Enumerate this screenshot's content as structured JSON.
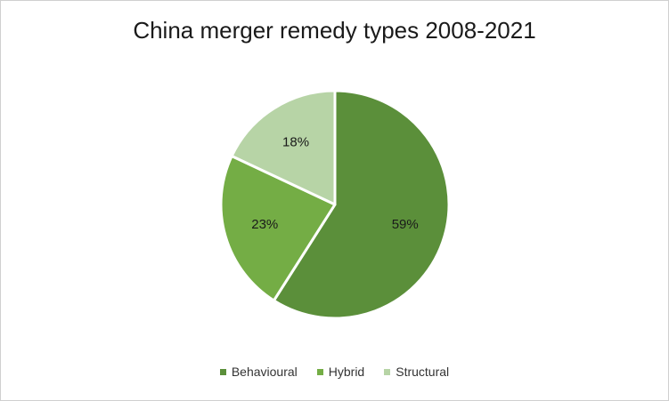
{
  "chart_data": {
    "type": "pie",
    "title": "China merger remedy types 2008-2021",
    "categories": [
      "Behavioural",
      "Hybrid",
      "Structural"
    ],
    "values": [
      59,
      23,
      18
    ],
    "labels": [
      "59%",
      "23%",
      "18%"
    ],
    "colors": [
      "#5b8f3a",
      "#74ad45",
      "#b7d4a6"
    ],
    "legend_position": "bottom"
  }
}
